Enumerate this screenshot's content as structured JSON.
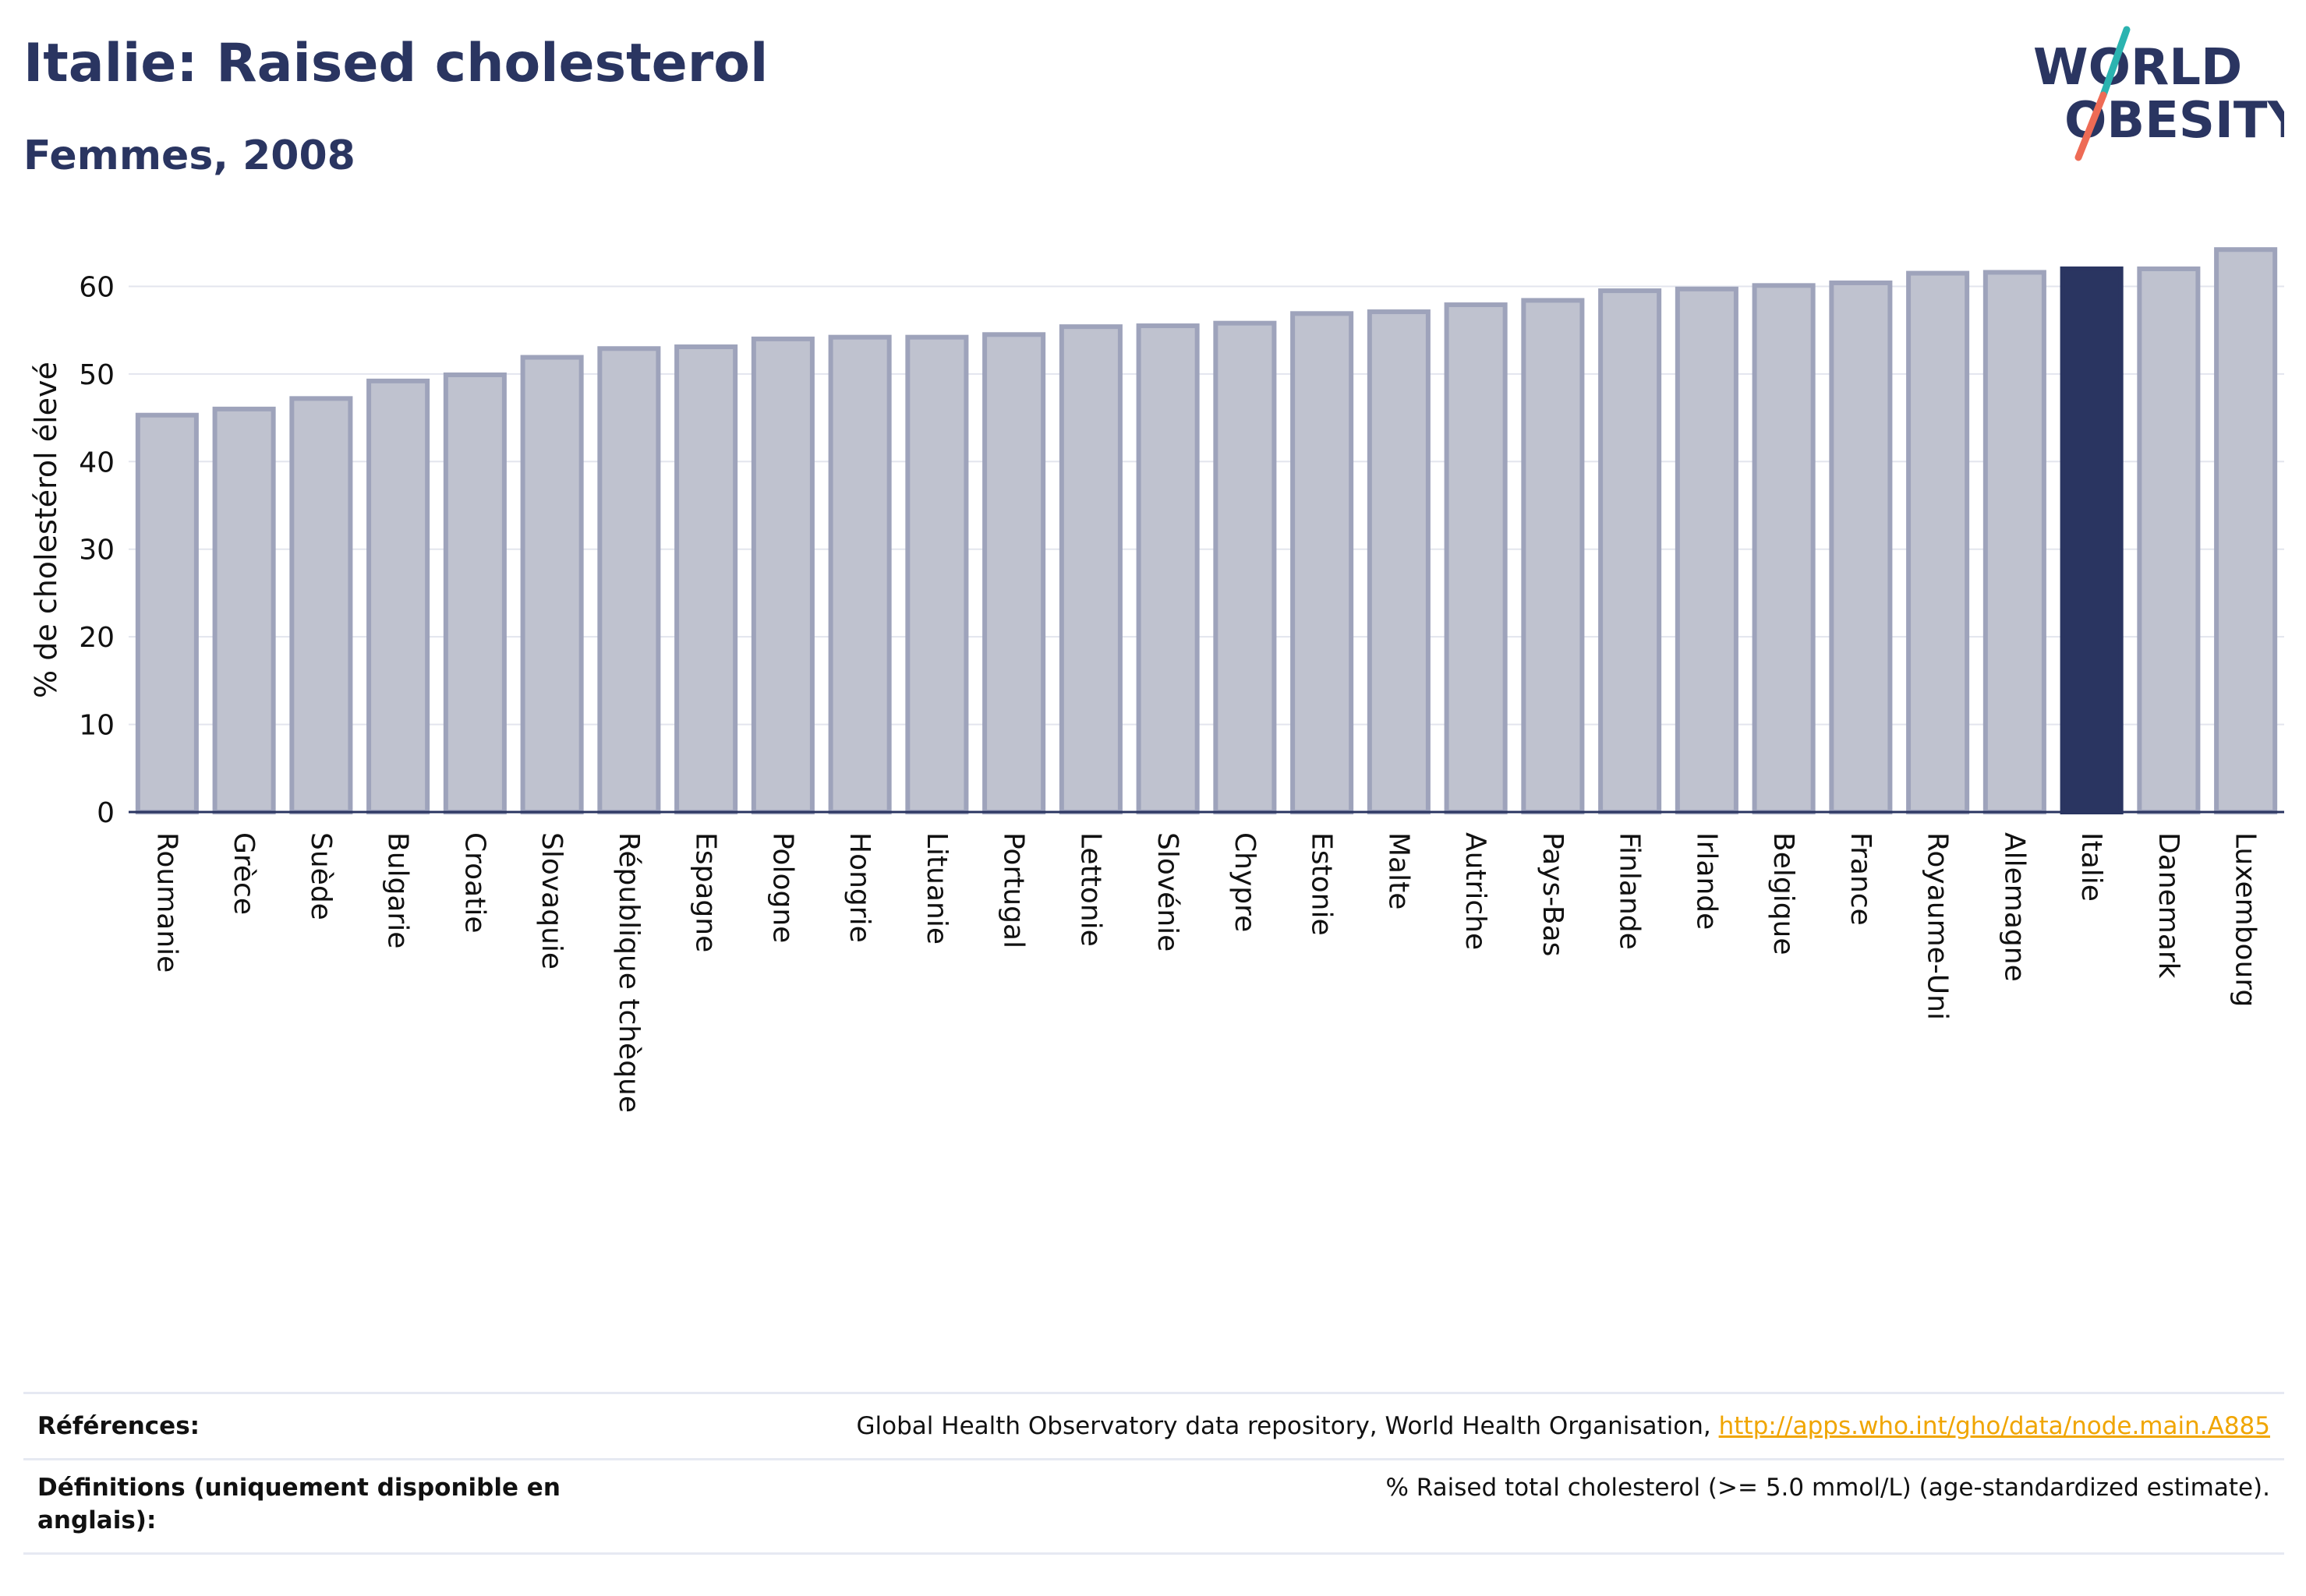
{
  "header": {
    "title": "Italie: Raised cholesterol",
    "subtitle": "Femmes, 2008"
  },
  "logo": {
    "line1": "WORLD",
    "line2": "OBESITY"
  },
  "colors": {
    "bar_default": "#bfc2cf",
    "bar_default_stroke": "#9ea3bb",
    "bar_highlight": "#2a3561",
    "axis": "#2a3561",
    "grid": "#e3e5ee"
  },
  "chart_data": {
    "type": "bar",
    "ylabel": "% de cholestérol élevé",
    "ylim": [
      0,
      66
    ],
    "yticks": [
      0,
      10,
      20,
      30,
      40,
      50,
      60
    ],
    "grid": true,
    "highlight": "Italie",
    "categories": [
      "Roumanie",
      "Grèce",
      "Suède",
      "Bulgarie",
      "Croatie",
      "Slovaquie",
      "République tchèque",
      "Espagne",
      "Pologne",
      "Hongrie",
      "Lituanie",
      "Portugal",
      "Lettonie",
      "Slovénie",
      "Chypre",
      "Estonie",
      "Malte",
      "Autriche",
      "Pays-Bas",
      "Finlande",
      "Irlande",
      "Belgique",
      "France",
      "Royaume-Uni",
      "Allemagne",
      "Italie",
      "Danemark",
      "Luxembourg"
    ],
    "values": [
      45.3,
      46.0,
      47.2,
      49.2,
      49.9,
      51.9,
      52.9,
      53.1,
      54.0,
      54.2,
      54.2,
      54.5,
      55.4,
      55.5,
      55.8,
      56.9,
      57.1,
      57.9,
      58.4,
      59.5,
      59.7,
      60.1,
      60.4,
      61.5,
      61.6,
      62.0,
      62.0,
      64.2
    ]
  },
  "references": {
    "refs_label": "Références:",
    "refs_text": "Global Health Observatory data repository, World Health Organisation, ",
    "refs_link": "http://apps.who.int/gho/data/node.main.A885",
    "defs_label": "Définitions (uniquement disponible en anglais):",
    "defs_text": "% Raised total cholesterol (>= 5.0 mmol/L) (age-standardized estimate)."
  }
}
